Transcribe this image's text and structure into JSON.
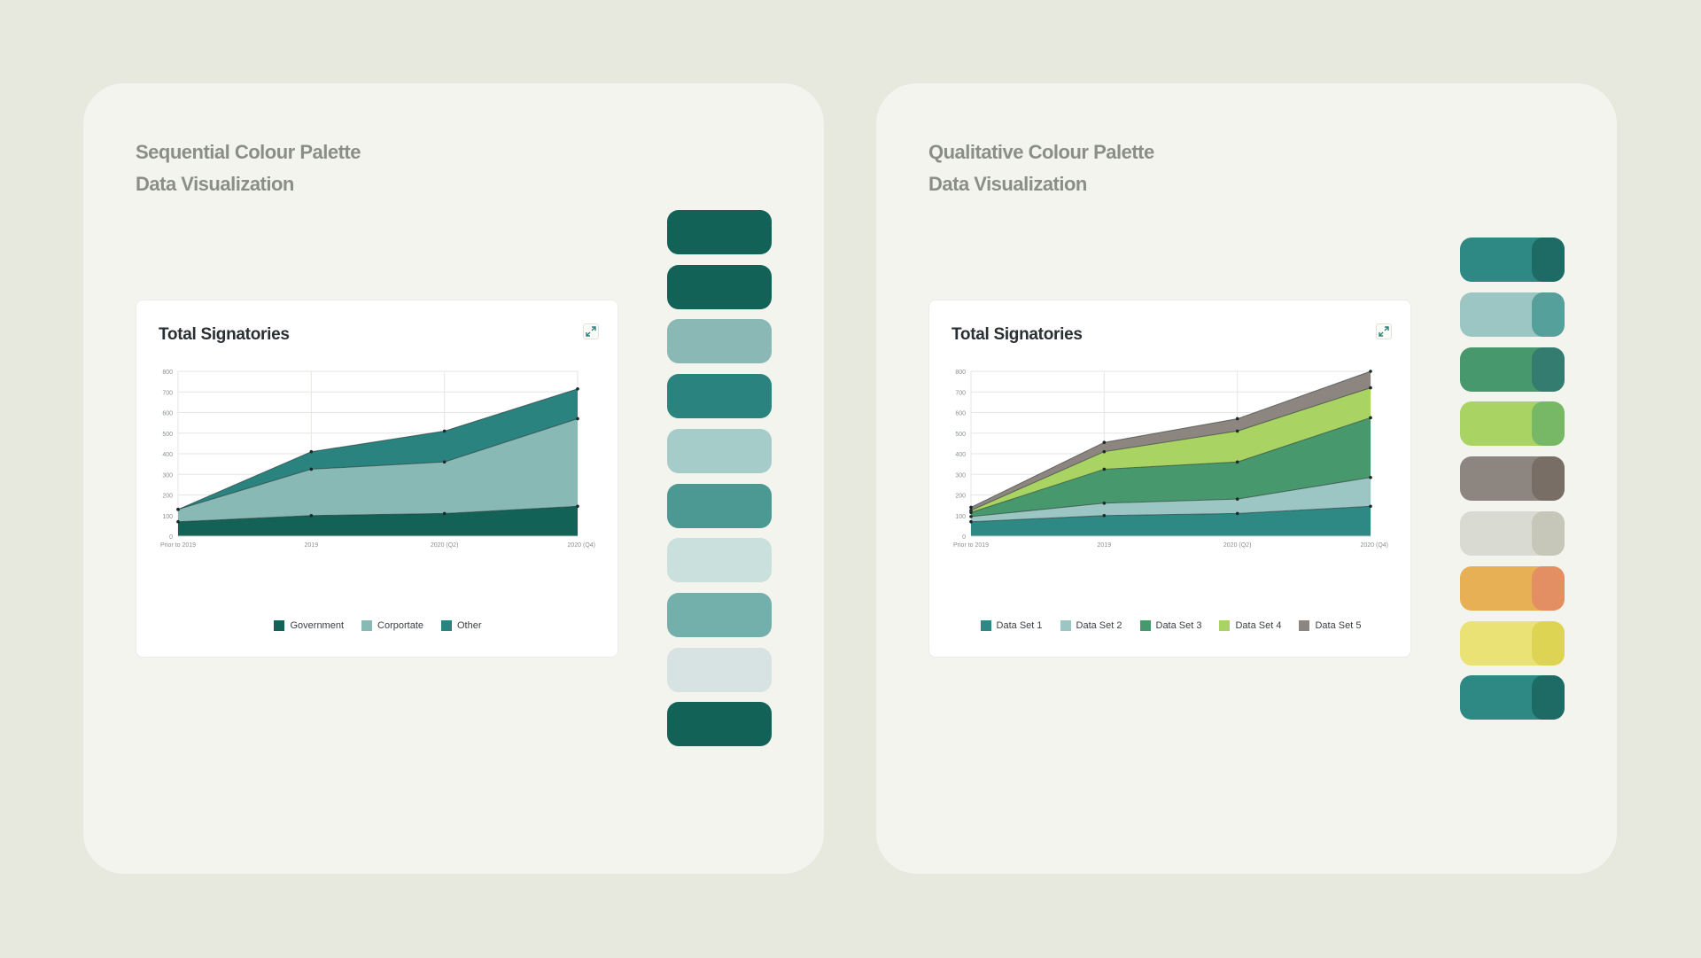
{
  "panels": {
    "left": {
      "title_line1": "Sequential Colour Palette",
      "title_line2": "Data Visualization",
      "swatches": [
        "#136258",
        "#136258",
        "#8ab9b5",
        "#2a837e",
        "#a5ccc9",
        "#4c9893",
        "#c9e0dd",
        "#74b0ab",
        "#d7e3e2",
        "#136258"
      ]
    },
    "right": {
      "title_line1": "Qualitative Colour Palette",
      "title_line2": "Data Visualization",
      "swatches": [
        {
          "main": "#2e8985",
          "accent": "#1e6b65"
        },
        {
          "main": "#9cc6c3",
          "accent": "#55a09a"
        },
        {
          "main": "#48986d",
          "accent": "#357c70"
        },
        {
          "main": "#a9d464",
          "accent": "#77b867"
        },
        {
          "main": "#8d8680",
          "accent": "#786e66"
        },
        {
          "main": "#d9dad2",
          "accent": "#c6c7b8"
        },
        {
          "main": "#e8b055",
          "accent": "#e48e63"
        },
        {
          "main": "#ebe276",
          "accent": "#dcd452"
        },
        {
          "main": "#2e8985",
          "accent": "#1e6b65"
        }
      ]
    }
  },
  "chart_data": [
    {
      "type": "area",
      "stacked": true,
      "title": "Total Signatories",
      "categories": [
        "Prior to 2019",
        "2019",
        "2020 (Q2)",
        "2020 (Q4)"
      ],
      "ylim": [
        0,
        800
      ],
      "yticks": [
        "0",
        "100",
        "200",
        "300",
        "400",
        "500",
        "600",
        "700",
        "800"
      ],
      "grid": true,
      "legend_position": "bottom",
      "series": [
        {
          "name": "Government",
          "color": "#136258",
          "values": [
            70,
            100,
            110,
            145
          ]
        },
        {
          "name": "Corportate",
          "color": "#88b9b5",
          "values": [
            60,
            225,
            250,
            425
          ]
        },
        {
          "name": "Other",
          "color": "#2a837e",
          "values": [
            0,
            85,
            150,
            145
          ]
        }
      ]
    },
    {
      "type": "area",
      "stacked": true,
      "title": "Total Signatories",
      "categories": [
        "Prior to 2019",
        "2019",
        "2020 (Q2)",
        "2020 (Q4)"
      ],
      "ylim": [
        0,
        800
      ],
      "yticks": [
        "0",
        "100",
        "200",
        "300",
        "400",
        "500",
        "600",
        "700",
        "800"
      ],
      "grid": true,
      "legend_position": "bottom",
      "series": [
        {
          "name": "Data Set 1",
          "color": "#2e8985",
          "values": [
            70,
            100,
            110,
            145
          ]
        },
        {
          "name": "Data Set 2",
          "color": "#9cc6c3",
          "values": [
            25,
            60,
            70,
            140
          ]
        },
        {
          "name": "Data Set 3",
          "color": "#48986d",
          "values": [
            20,
            165,
            180,
            290
          ]
        },
        {
          "name": "Data Set 4",
          "color": "#a9d464",
          "values": [
            10,
            85,
            150,
            145
          ]
        },
        {
          "name": "Data Set 5",
          "color": "#8d8680",
          "values": [
            15,
            45,
            60,
            80
          ]
        }
      ]
    }
  ]
}
